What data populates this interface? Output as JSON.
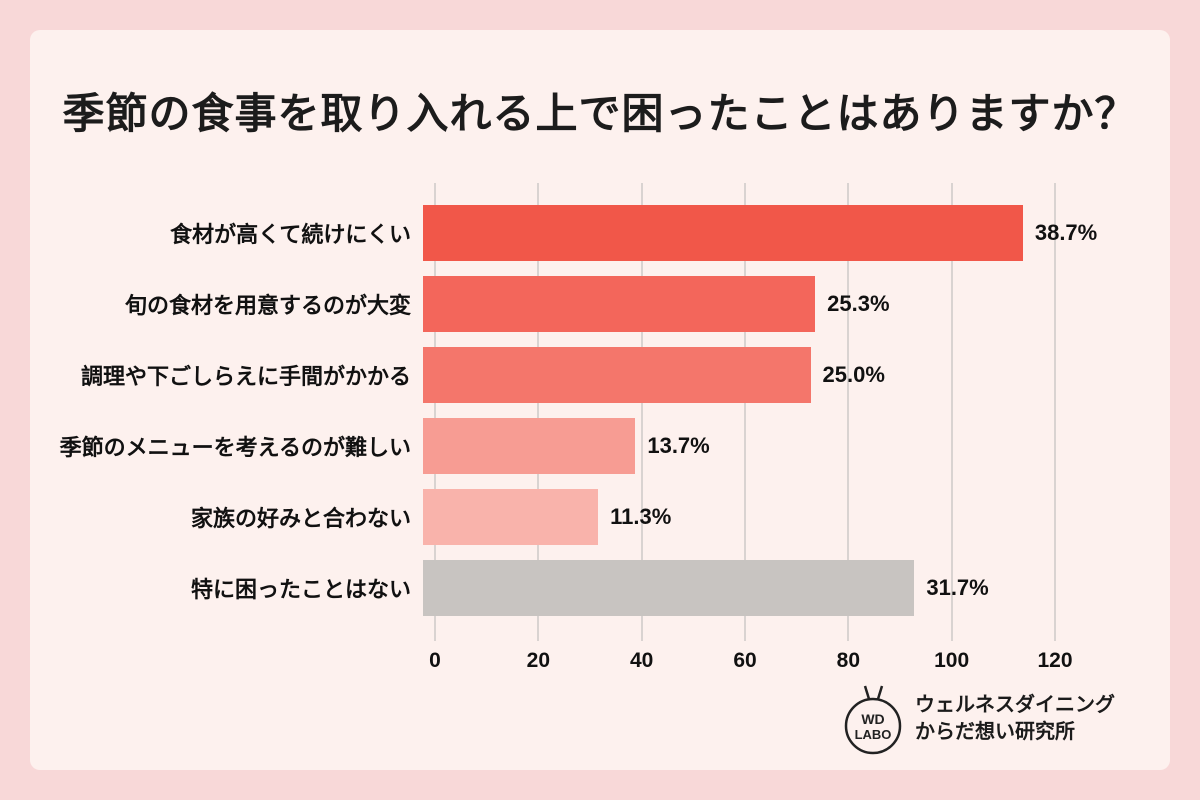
{
  "page": {
    "title": "季節の食事を取り入れる上で困ったことはありますか？"
  },
  "chart_data": {
    "type": "bar",
    "orientation": "horizontal",
    "title": "季節の食事を取り入れる上で困ったことはありますか？",
    "categories": [
      "食材が高くて続けにくい",
      "旬の食材を用意するのが大変",
      "調理や下ごしらえに手間がかかる",
      "季節のメニューを考えるのが難しい",
      "家族の好みと合わない",
      "特に困ったことはない"
    ],
    "percents": [
      38.7,
      25.3,
      25.0,
      13.7,
      11.3,
      31.7
    ],
    "percent_labels": [
      "38.7%",
      "25.3%",
      "25.0%",
      "13.7%",
      "11.3%",
      "31.7%"
    ],
    "values": [
      116.1,
      75.9,
      75.0,
      41.1,
      33.9,
      95.1
    ],
    "xlim": [
      0,
      120
    ],
    "x_ticks": [
      0,
      20,
      40,
      60,
      80,
      100,
      120
    ],
    "grid": true,
    "legend": "none",
    "bar_colors": [
      "#f15749",
      "#f3665b",
      "#f4766b",
      "#f79c93",
      "#f9b3ab",
      "#c8c4c1"
    ]
  },
  "footer": {
    "logo_line1": "WD",
    "logo_line2": "LABO",
    "org_line1": "ウェルネスダイニング",
    "org_line2": "からだ想い研究所"
  },
  "colors": {
    "outer_background": "#f8d8d8",
    "panel_background": "#fdf1ee",
    "gridline": "#d9d3d1",
    "text": "#1b1b1b"
  }
}
